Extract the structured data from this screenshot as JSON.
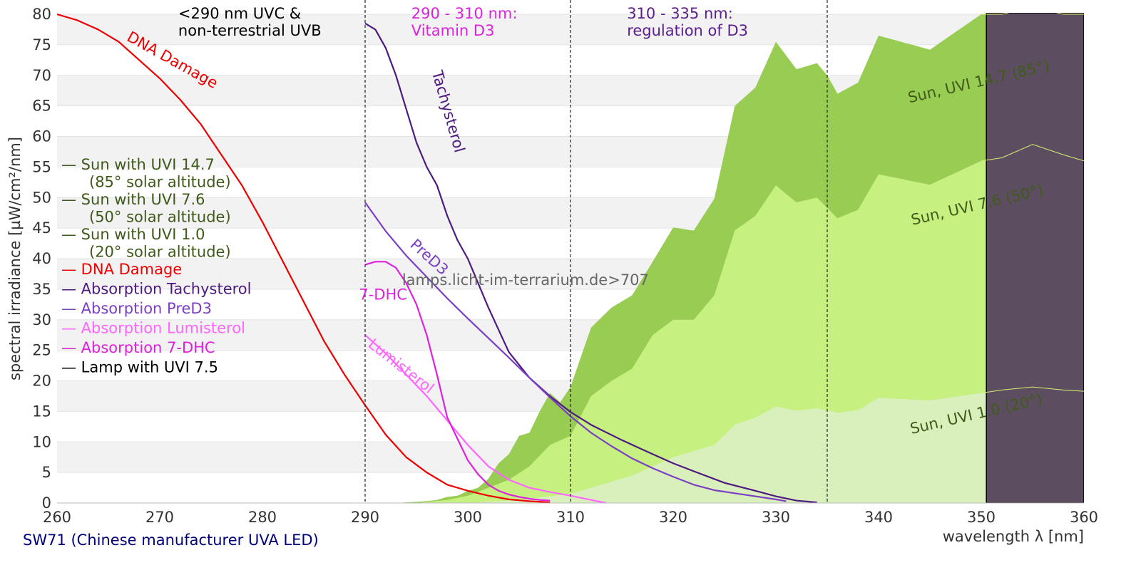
{
  "chart_data": {
    "type": "area",
    "xlabel": "wavelength λ [nm]",
    "ylabel": "spectral irradiance [µW/cm²/nm]",
    "xlim": [
      260,
      360
    ],
    "ylim": [
      0,
      80
    ],
    "x_ticks": [
      260,
      270,
      280,
      290,
      300,
      310,
      320,
      330,
      340,
      350,
      360
    ],
    "y_ticks": [
      0,
      5,
      10,
      15,
      20,
      25,
      30,
      35,
      40,
      45,
      50,
      55,
      60,
      65,
      70,
      75,
      80
    ],
    "grid": "horizontal bands",
    "region_lines": [
      290,
      310,
      335
    ],
    "regions": [
      {
        "lines": [
          "<290 nm UVC &",
          "non-terrestrial UVB"
        ],
        "x": 271.8,
        "color": "#000000"
      },
      {
        "lines": [
          "290 - 310 nm:",
          "Vitamin D3"
        ],
        "x": 294.5,
        "color": "#dd22dd"
      },
      {
        "lines": [
          "310 - 335 nm:",
          "regulation of D3"
        ],
        "x": 315.5,
        "color": "#5a1f8c"
      }
    ],
    "legend": {
      "placement": "left",
      "entries": [
        {
          "text": "— Sun with UVI 14.7",
          "sub": "(85° solar altitude)",
          "color": "#3f5a1a"
        },
        {
          "text": "— Sun with UVI 7.6",
          "sub": "(50° solar altitude)",
          "color": "#3f5a1a"
        },
        {
          "text": "— Sun with UVI 1.0",
          "sub": "(20° solar altitude)",
          "color": "#3f5a1a"
        },
        {
          "text": "— DNA Damage",
          "color": "#ee0000"
        },
        {
          "text": "— Absorption Tachysterol",
          "color": "#4d1a80"
        },
        {
          "text": "— Absorption PreD3",
          "color": "#7b3fc4"
        },
        {
          "text": "— Absorption Lumisterol",
          "color": "#ff66ff"
        },
        {
          "text": "— Absorption 7-DHC",
          "color": "#dd22dd"
        },
        {
          "text": "— Lamp with UVI 7.5",
          "color": "#000000"
        }
      ]
    },
    "series": [
      {
        "name": "Sun with UVI 14.7",
        "kind": "area",
        "color": "#99cc52",
        "x": [
          293,
          296,
          297,
          298,
          299,
          300,
          301,
          302,
          303,
          304,
          305,
          306,
          307,
          308,
          309,
          310,
          312,
          314,
          316,
          318,
          320,
          322,
          324,
          326,
          328,
          330,
          332,
          334,
          335,
          336,
          338,
          340,
          345,
          350,
          352,
          355,
          358,
          360
        ],
        "y": [
          0,
          0.3,
          0.5,
          1,
          1.2,
          2,
          2.5,
          4,
          6.5,
          8,
          11,
          11.5,
          15,
          18,
          16.5,
          19,
          28.7,
          32,
          34,
          39.5,
          45.1,
          44.6,
          49.8,
          65,
          68,
          75.5,
          71,
          72,
          70,
          67,
          68.8,
          76.5,
          74.2,
          80,
          80,
          81.2,
          80,
          80
        ]
      },
      {
        "name": "Sun with UVI 7.6",
        "kind": "area",
        "color": "#c6f080",
        "x": [
          295,
          298,
          300,
          302,
          304,
          306,
          308,
          310,
          312,
          314,
          316,
          318,
          320,
          322,
          324,
          326,
          328,
          330,
          332,
          334,
          336,
          338,
          340,
          345,
          350,
          352,
          355,
          358,
          360
        ],
        "y": [
          0,
          0.5,
          1.2,
          2.5,
          3.8,
          6,
          9.5,
          11,
          17.5,
          20,
          22,
          27.5,
          30,
          30,
          34,
          44.6,
          47,
          52,
          49.2,
          50,
          46.6,
          48,
          53.8,
          52.1,
          56,
          56.5,
          58.7,
          57,
          56
        ]
      },
      {
        "name": "Sun with UVI 1.0",
        "kind": "area",
        "color": "#daf0bc",
        "x": [
          300,
          305,
          310,
          312,
          316,
          320,
          324,
          326,
          328,
          330,
          332,
          334,
          336,
          338,
          340,
          345,
          350,
          352,
          355,
          358,
          360
        ],
        "y": [
          0,
          0.5,
          1.5,
          2.5,
          4.5,
          7.5,
          9.5,
          12.8,
          14,
          15.8,
          15.1,
          15.5,
          14.8,
          15.2,
          17.2,
          16.8,
          18,
          18.5,
          19,
          18.5,
          18.3
        ]
      },
      {
        "name": "DNA Damage",
        "kind": "line",
        "color": "#ee0000",
        "x": [
          260,
          262,
          264,
          266,
          268,
          270,
          272,
          274,
          276,
          278,
          280,
          282,
          284,
          286,
          288,
          290,
          292,
          294,
          296,
          298,
          300,
          302,
          304,
          306,
          308
        ],
        "y": [
          80,
          79,
          77.5,
          75.5,
          72.5,
          69.5,
          66,
          62,
          57,
          52,
          46,
          39.5,
          33,
          26.5,
          21,
          16,
          11.2,
          7.5,
          5,
          3,
          2,
          1.2,
          0.6,
          0.3,
          0.1
        ]
      },
      {
        "name": "Absorption Tachysterol",
        "kind": "line",
        "color": "#4d1a80",
        "x": [
          290,
          291,
          292,
          293,
          294,
          295,
          296,
          297,
          298,
          299,
          300,
          302,
          304,
          306,
          308,
          310,
          312,
          315,
          318,
          320,
          322,
          325,
          328,
          330,
          332,
          334
        ],
        "y": [
          78.5,
          77.5,
          74.5,
          70,
          64.5,
          59,
          55,
          52,
          47,
          43,
          40,
          32,
          24.7,
          20.5,
          17.5,
          14.9,
          12.8,
          10.3,
          8,
          6.5,
          5.2,
          3.3,
          2,
          1.1,
          0.4,
          0.1
        ]
      },
      {
        "name": "Absorption PreD3",
        "kind": "line",
        "color": "#7b3fc4",
        "x": [
          290,
          292,
          294,
          296,
          298,
          300,
          302,
          304,
          306,
          308,
          310,
          312,
          314,
          316,
          318,
          320,
          322,
          324,
          326,
          328,
          330,
          331
        ],
        "y": [
          49.2,
          44.5,
          40.5,
          37,
          33.5,
          30.2,
          27,
          23.8,
          20.5,
          17.3,
          14.2,
          11.5,
          9.3,
          7.3,
          5.7,
          4.3,
          3,
          2.1,
          1.6,
          1.1,
          0.6,
          0.3
        ]
      },
      {
        "name": "Absorption Lumisterol",
        "kind": "line",
        "color": "#ff66ff",
        "x": [
          290,
          292,
          294,
          296,
          298,
          300,
          302,
          304,
          306,
          308,
          310,
          312,
          313.5
        ],
        "y": [
          27.5,
          24.5,
          21,
          17.5,
          13.5,
          9.5,
          6,
          3.8,
          2.5,
          1.8,
          1.2,
          0.5,
          0
        ]
      },
      {
        "name": "Absorption 7-DHC",
        "kind": "line",
        "color": "#dd22dd",
        "x": [
          290,
          291,
          292,
          293,
          294,
          295,
          296,
          297,
          298,
          299,
          300,
          301,
          302,
          303,
          304,
          305,
          306,
          307,
          308
        ],
        "y": [
          39,
          39.5,
          39.5,
          38.5,
          36,
          32.5,
          27.5,
          21,
          14,
          10.5,
          7,
          4.7,
          3,
          2,
          1.4,
          1,
          0.7,
          0.5,
          0.4
        ]
      }
    ],
    "lamp": {
      "name": "Lamp with UVI 7.5",
      "from_x": 350.5,
      "to_x": 360,
      "fill": "#5c4e60"
    },
    "curve_labels": [
      {
        "text": "DNA Damage",
        "x": 266.7,
        "y": 75.8,
        "angle": 29,
        "color": "#ee0000"
      },
      {
        "text": "Tachysterol",
        "x": 296.5,
        "y": 70.5,
        "angle": 74,
        "color": "#4d1a80"
      },
      {
        "text": "PreD3",
        "x": 294.3,
        "y": 42.1,
        "angle": 42,
        "color": "#7b3fc4"
      },
      {
        "text": "7-DHC",
        "x": 289.4,
        "y": 33.3,
        "angle": 0,
        "color": "#dd22dd"
      },
      {
        "text": "Lumisterol",
        "x": 290.2,
        "y": 25.7,
        "angle": 38,
        "color": "#ff66ff"
      }
    ],
    "band_labels": [
      {
        "text": "Sun, UVI 14.7 (85°)",
        "x": 343,
        "y": 65.5,
        "angle": -13
      },
      {
        "text": "Sun, UVI 7.6 (50°)",
        "x": 343.3,
        "y": 45.5,
        "angle": -13
      },
      {
        "text": "Sun, UVI 1.0 (20°)",
        "x": 343.2,
        "y": 11.3,
        "angle": -13
      }
    ],
    "watermark": "lamps.licht-im-terrarium.de>707"
  },
  "footer": "SW71 (Chinese manufacturer UVA LED)"
}
